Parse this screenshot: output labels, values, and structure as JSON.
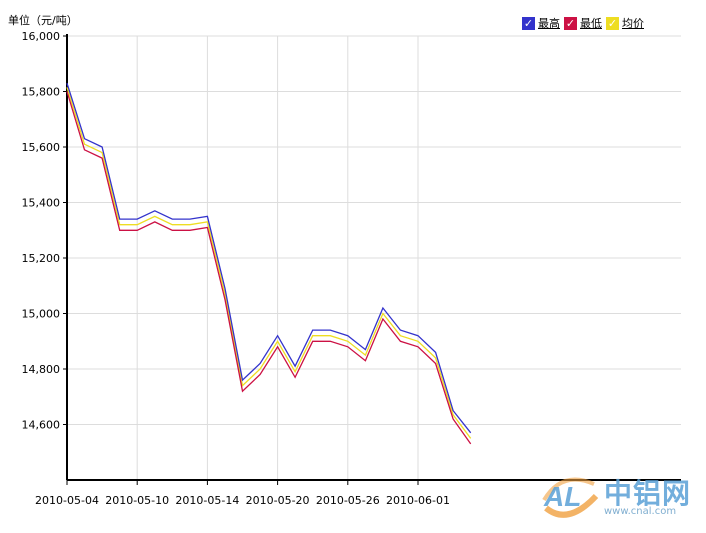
{
  "chart_data": {
    "type": "line",
    "unit_label": "单位（元/吨）",
    "ylim": [
      14400,
      16000
    ],
    "yticks": [
      14600,
      14800,
      15000,
      15200,
      15400,
      15600,
      15800,
      16000
    ],
    "ytick_labels": [
      "14,600",
      "14,800",
      "15,000",
      "15,200",
      "15,400",
      "15,600",
      "15,800",
      "16,000"
    ],
    "x": [
      "2010-05-04",
      "2010-05-05",
      "2010-05-06",
      "2010-05-07",
      "2010-05-10",
      "2010-05-11",
      "2010-05-12",
      "2010-05-13",
      "2010-05-14",
      "2010-05-17",
      "2010-05-18",
      "2010-05-19",
      "2010-05-20",
      "2010-05-21",
      "2010-05-24",
      "2010-05-25",
      "2010-05-26",
      "2010-05-27",
      "2010-05-28",
      "2010-05-31",
      "2010-06-01",
      "2010-06-02",
      "2010-06-03",
      "2010-06-04"
    ],
    "xtick_labels": [
      "2010-05-04",
      "2010-05-10",
      "2010-05-14",
      "2010-05-20",
      "2010-05-26",
      "2010-06-01"
    ],
    "grid": true,
    "legend_position": "top-right",
    "series": [
      {
        "name": "最高",
        "color": "#3333cc",
        "values": [
          15830,
          15630,
          15600,
          15340,
          15340,
          15370,
          15340,
          15340,
          15350,
          15090,
          14760,
          14820,
          14920,
          14810,
          14940,
          14940,
          14920,
          14870,
          15020,
          14940,
          14920,
          14860,
          14650,
          14570
        ]
      },
      {
        "name": "最低",
        "color": "#cc1144",
        "values": [
          15800,
          15590,
          15560,
          15300,
          15300,
          15330,
          15300,
          15300,
          15310,
          15050,
          14720,
          14780,
          14880,
          14770,
          14900,
          14900,
          14880,
          14830,
          14980,
          14900,
          14880,
          14820,
          14620,
          14530
        ]
      },
      {
        "name": "均价",
        "color": "#eedd22",
        "values": [
          15815,
          15610,
          15580,
          15320,
          15320,
          15350,
          15320,
          15320,
          15330,
          15070,
          14740,
          14800,
          14900,
          14790,
          14920,
          14920,
          14900,
          14850,
          15000,
          14920,
          14900,
          14840,
          14635,
          14550
        ]
      }
    ]
  },
  "legend": {
    "check_mark": "✓"
  },
  "watermark": {
    "logo_text": "AL",
    "name": "中铝网",
    "url": "www.cnal.com"
  }
}
